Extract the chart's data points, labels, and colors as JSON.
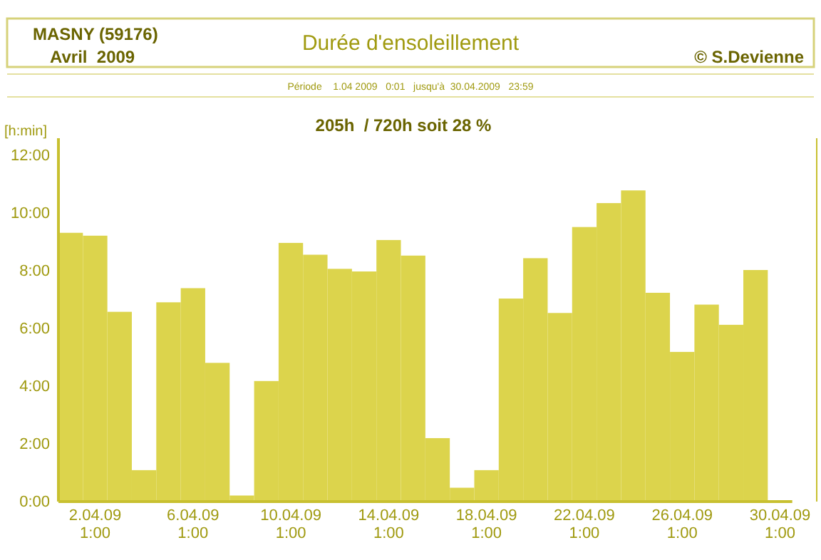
{
  "chart_data": {
    "type": "bar",
    "title": "Durée d'ensoleillement",
    "annotations": [
      "MASNY (59176)",
      "Avril  2009",
      "© S.Devienne",
      "Période    1.04 2009   0:01   jusqu'à  30.04.2009   23:59",
      "205h  / 720h soit 28 %"
    ],
    "ylabel": "[h:min]",
    "categories": [
      null,
      "2.04.09\n1:00",
      null,
      null,
      null,
      "6.04.09\n1:00",
      null,
      null,
      null,
      "10.04.09\n1:00",
      null,
      null,
      null,
      "14.04.09\n1:00",
      null,
      null,
      null,
      "18.04.09\n1:00",
      null,
      null,
      null,
      "22.04.09\n1:00",
      null,
      null,
      null,
      "26.04.09\n1:00",
      null,
      null,
      null,
      "30.04.09\n1:00"
    ],
    "values": [
      9.32,
      9.22,
      6.58,
      1.09,
      6.91,
      7.4,
      4.81,
      0.21,
      4.18,
      8.97,
      8.56,
      8.07,
      7.98,
      9.07,
      8.53,
      2.2,
      0.48,
      1.09,
      7.04,
      8.44,
      6.54,
      9.52,
      10.35,
      10.79,
      7.24,
      5.19,
      6.83,
      6.13,
      8.03,
      null
    ],
    "color": "#dcd44c",
    "ylim": [
      0,
      12.6
    ],
    "yticks": [
      {
        "value": 0,
        "label": "0:00"
      },
      {
        "value": 2,
        "label": "2:00"
      },
      {
        "value": 4,
        "label": "4:00"
      },
      {
        "value": 6,
        "label": "6:00"
      },
      {
        "value": 8,
        "label": "8:00"
      },
      {
        "value": 10,
        "label": "10:00"
      },
      {
        "value": 12,
        "label": "12:00"
      }
    ]
  }
}
